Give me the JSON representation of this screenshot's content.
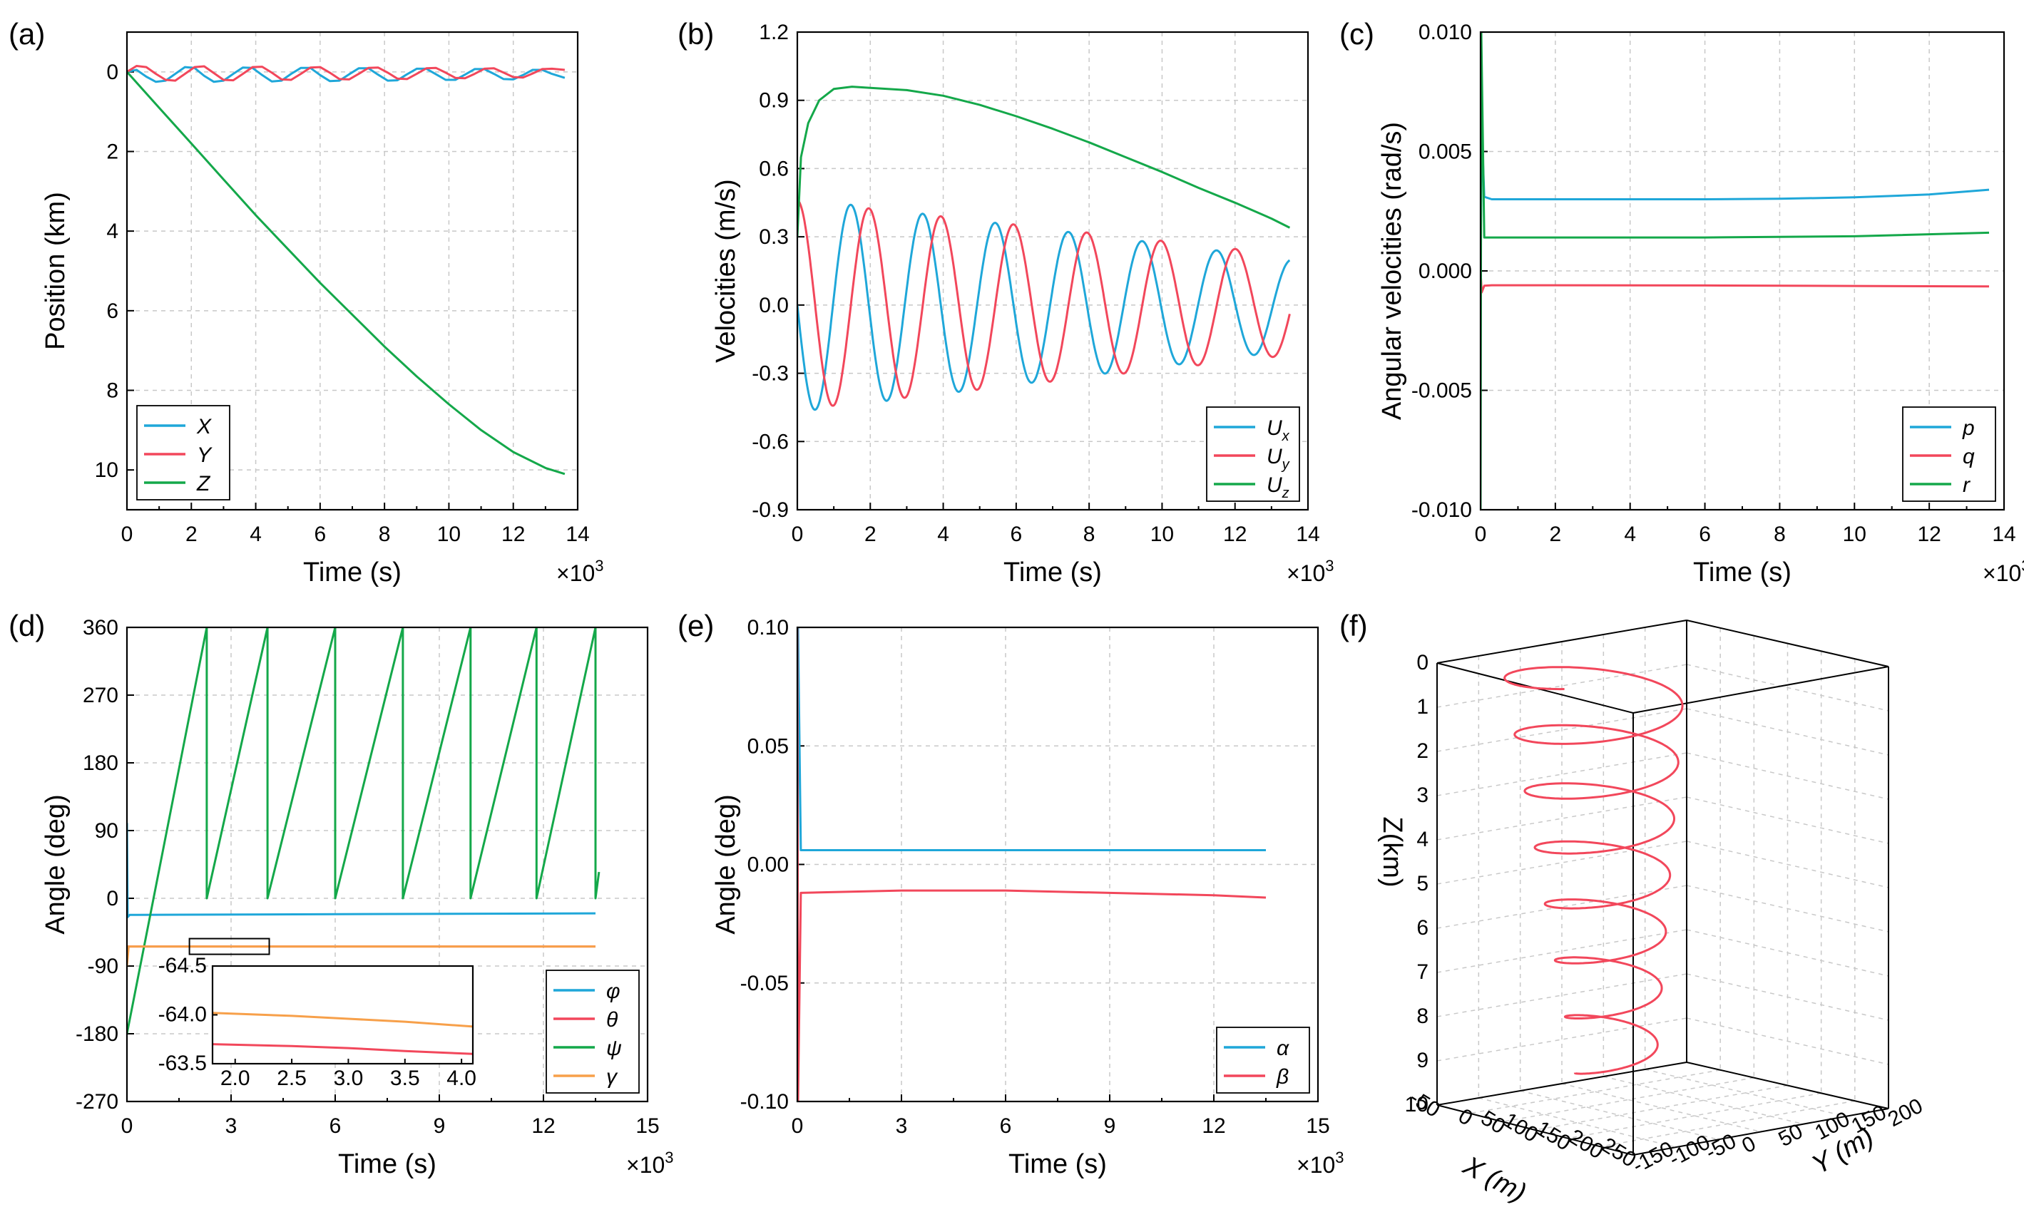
{
  "colors": {
    "cyan": "#1fa7d9",
    "red": "#f2475b",
    "green": "#14a84a",
    "orange": "#f7a04a"
  },
  "chart_data": [
    {
      "id": "a",
      "panel_label": "(a)",
      "type": "line",
      "xlabel": "Time (s)",
      "ylabel": "Position (km)",
      "x_multiplier": "×10",
      "xlim": [
        0,
        14
      ],
      "ylim": [
        11,
        -1
      ],
      "y_inverted": true,
      "xticks": [
        "0",
        "2",
        "4",
        "6",
        "8",
        "10",
        "12",
        "14"
      ],
      "yticks": [
        "0",
        "2",
        "4",
        "6",
        "8",
        "10"
      ],
      "legend": "bottom-left",
      "series": [
        {
          "name": "X",
          "color": "#1fa7d9",
          "x": [
            0,
            0.3,
            0.6,
            0.9,
            1.2,
            1.5,
            1.8,
            2.1,
            2.4,
            2.7,
            3.0,
            3.3,
            3.6,
            3.9,
            4.2,
            4.5,
            4.8,
            5.1,
            5.4,
            5.7,
            6.0,
            6.3,
            6.6,
            6.9,
            7.2,
            7.5,
            7.8,
            8.1,
            8.4,
            8.7,
            9.0,
            9.3,
            9.6,
            9.9,
            10.2,
            10.5,
            10.8,
            11.1,
            11.4,
            11.7,
            12.0,
            12.3,
            12.6,
            12.9,
            13.2,
            13.6
          ],
          "y": [
            0,
            -0.05,
            0.12,
            0.25,
            0.22,
            0.05,
            -0.12,
            -0.1,
            0.1,
            0.25,
            0.22,
            0.05,
            -0.11,
            -0.1,
            0.08,
            0.24,
            0.22,
            0.05,
            -0.1,
            -0.1,
            0.08,
            0.23,
            0.22,
            0.06,
            -0.09,
            -0.09,
            0.07,
            0.22,
            0.21,
            0.06,
            -0.08,
            -0.08,
            0.06,
            0.2,
            0.2,
            0.07,
            -0.07,
            -0.07,
            0.05,
            0.18,
            0.19,
            0.08,
            -0.05,
            -0.05,
            0.05,
            0.15
          ]
        },
        {
          "name": "Y",
          "color": "#f2475b",
          "x": [
            0,
            0.3,
            0.6,
            0.9,
            1.2,
            1.5,
            1.8,
            2.1,
            2.4,
            2.7,
            3.0,
            3.3,
            3.6,
            3.9,
            4.2,
            4.5,
            4.8,
            5.1,
            5.4,
            5.7,
            6.0,
            6.3,
            6.6,
            6.9,
            7.2,
            7.5,
            7.8,
            8.1,
            8.4,
            8.7,
            9.0,
            9.3,
            9.6,
            9.9,
            10.2,
            10.5,
            10.8,
            11.1,
            11.4,
            11.7,
            12.0,
            12.3,
            12.6,
            12.9,
            13.2,
            13.6
          ],
          "y": [
            0,
            -0.15,
            -0.12,
            0.05,
            0.2,
            0.22,
            0.05,
            -0.12,
            -0.14,
            0.03,
            0.2,
            0.21,
            0.05,
            -0.12,
            -0.13,
            0.02,
            0.19,
            0.2,
            0.05,
            -0.11,
            -0.12,
            0.02,
            0.18,
            0.19,
            0.05,
            -0.1,
            -0.11,
            0.02,
            0.17,
            0.18,
            0.05,
            -0.09,
            -0.1,
            0.02,
            0.15,
            0.16,
            0.05,
            -0.08,
            -0.09,
            0.02,
            0.13,
            0.14,
            0.04,
            -0.07,
            -0.08,
            -0.05
          ]
        },
        {
          "name": "Z",
          "color": "#14a84a",
          "x": [
            0,
            1,
            2,
            3,
            4,
            5,
            6,
            7,
            8,
            9,
            10,
            11,
            12,
            13,
            13.6
          ],
          "y": [
            0,
            0.9,
            1.8,
            2.7,
            3.6,
            4.45,
            5.3,
            6.1,
            6.9,
            7.65,
            8.35,
            9.0,
            9.55,
            9.95,
            10.1
          ]
        }
      ]
    },
    {
      "id": "b",
      "panel_label": "(b)",
      "type": "line",
      "xlabel": "Time (s)",
      "ylabel": "Velocities (m/s)",
      "x_multiplier": "×10",
      "xlim": [
        0,
        14
      ],
      "ylim": [
        -0.9,
        1.2
      ],
      "xticks": [
        "0",
        "2",
        "4",
        "6",
        "8",
        "10",
        "12",
        "14"
      ],
      "yticks": [
        "-0.9",
        "-0.6",
        "-0.3",
        "0.0",
        "0.3",
        "0.6",
        "0.9",
        "1.2"
      ],
      "legend": "bottom-right",
      "series": [
        {
          "name": "U",
          "subscript": "x",
          "color": "#1fa7d9",
          "model": "sine",
          "amp_start": 0.47,
          "amp_end": 0.2,
          "period": 1.95,
          "phase": 0,
          "x_end": 13.5
        },
        {
          "name": "U",
          "subscript": "y",
          "color": "#f2475b",
          "model": "sine",
          "amp_start": 0.46,
          "amp_end": 0.22,
          "period": 1.95,
          "phase": -1.5708,
          "x_end": 13.5
        },
        {
          "name": "U",
          "subscript": "z",
          "color": "#14a84a",
          "x": [
            0,
            0.1,
            0.3,
            0.6,
            1.0,
            1.5,
            2.0,
            3.0,
            4.0,
            5.0,
            6.0,
            7.0,
            8.0,
            9.0,
            10.0,
            11.0,
            12.0,
            13.0,
            13.5
          ],
          "y": [
            0.3,
            0.65,
            0.8,
            0.9,
            0.95,
            0.96,
            0.955,
            0.945,
            0.92,
            0.88,
            0.83,
            0.775,
            0.715,
            0.65,
            0.585,
            0.515,
            0.45,
            0.38,
            0.34
          ]
        }
      ]
    },
    {
      "id": "c",
      "panel_label": "(c)",
      "type": "line",
      "xlabel": "Time (s)",
      "ylabel": "Angular velocities (rad/s)",
      "x_multiplier": "×10",
      "xlim": [
        0,
        14
      ],
      "ylim": [
        -0.01,
        0.01
      ],
      "xticks": [
        "0",
        "2",
        "4",
        "6",
        "8",
        "10",
        "12",
        "14"
      ],
      "yticks": [
        "-0.010",
        "-0.005",
        "0.000",
        "0.005",
        "0.010"
      ],
      "legend": "bottom-right",
      "series": [
        {
          "name": "p",
          "color": "#1fa7d9",
          "x": [
            0,
            0.03,
            0.1,
            0.3,
            1,
            2,
            4,
            6,
            8,
            10,
            12,
            13.6
          ],
          "y": [
            0.0,
            0.006,
            0.0031,
            0.003,
            0.003,
            0.003,
            0.003,
            0.003,
            0.00302,
            0.00308,
            0.0032,
            0.0034
          ]
        },
        {
          "name": "q",
          "color": "#f2475b",
          "x": [
            0,
            0.03,
            0.1,
            0.3,
            2,
            6,
            10,
            13.6
          ],
          "y": [
            0.0,
            -0.0009,
            -0.00062,
            -0.0006,
            -0.0006,
            -0.00061,
            -0.00063,
            -0.00065
          ]
        },
        {
          "name": "r",
          "color": "#14a84a",
          "x": [
            0,
            0.02,
            0.1,
            0.3,
            2,
            6,
            10,
            13.6
          ],
          "y": [
            -0.01,
            0.01,
            0.0014,
            0.0014,
            0.0014,
            0.0014,
            0.00145,
            0.0016
          ]
        }
      ]
    },
    {
      "id": "d",
      "panel_label": "(d)",
      "type": "line",
      "xlabel": "Time (s)",
      "ylabel": "Angle (deg)",
      "x_multiplier": "×10",
      "xlim": [
        0,
        15
      ],
      "ylim": [
        -270,
        360
      ],
      "xticks": [
        "0",
        "3",
        "6",
        "9",
        "12",
        "15"
      ],
      "yticks": [
        "-270",
        "-180",
        "-90",
        "0",
        "90",
        "180",
        "270",
        "360"
      ],
      "legend": "bottom-right",
      "series": [
        {
          "name": "φ",
          "color": "#1fa7d9",
          "x": [
            0,
            0.02,
            0.08,
            0.3,
            13.5
          ],
          "y": [
            100,
            -25,
            -22,
            -22,
            -20
          ]
        },
        {
          "name": "θ",
          "color": "#f2475b",
          "x": [
            0,
            13.5
          ],
          "y": [
            -64,
            -64
          ]
        },
        {
          "name": "ψ",
          "color": "#14a84a",
          "x": [
            0,
            2.3,
            2.3,
            4.05,
            4.05,
            6.0,
            6.0,
            7.95,
            7.95,
            9.9,
            9.9,
            11.8,
            11.8,
            13.5,
            13.5,
            13.6
          ],
          "y": [
            -180,
            360,
            0,
            360,
            0,
            360,
            0,
            360,
            0,
            360,
            0,
            360,
            0,
            360,
            0,
            35
          ]
        },
        {
          "name": "γ",
          "color": "#f7a04a",
          "x": [
            0,
            0.05,
            0.3,
            13.5
          ],
          "y": [
            -90,
            -64,
            -64,
            -64
          ]
        }
      ],
      "inset": {
        "xlim": [
          1.8,
          4.1
        ],
        "ylim": [
          -63.5,
          -64.5
        ],
        "xticks": [
          "2.0",
          "2.5",
          "3.0",
          "3.5",
          "4.0"
        ],
        "yticks": [
          "-64.5",
          "-64.0",
          "-63.5"
        ],
        "series": [
          {
            "name": "γ",
            "color": "#f7a04a",
            "x": [
              1.8,
              2.5,
              3.0,
              3.5,
              4.1
            ],
            "y": [
              -64.02,
              -63.99,
              -63.96,
              -63.93,
              -63.88
            ]
          },
          {
            "name": "θ",
            "color": "#f2475b",
            "x": [
              1.8,
              2.5,
              3.0,
              3.5,
              4.1
            ],
            "y": [
              -63.7,
              -63.68,
              -63.66,
              -63.63,
              -63.6
            ]
          }
        ]
      }
    },
    {
      "id": "e",
      "panel_label": "(e)",
      "type": "line",
      "xlabel": "Time (s)",
      "ylabel": "Angle (deg)",
      "x_multiplier": "×10",
      "xlim": [
        0,
        15
      ],
      "ylim": [
        -0.1,
        0.1
      ],
      "xticks": [
        "0",
        "3",
        "6",
        "9",
        "12",
        "15"
      ],
      "yticks": [
        "-0.10",
        "-0.05",
        "0.00",
        "0.05",
        "0.10"
      ],
      "legend": "bottom-right",
      "series": [
        {
          "name": "α",
          "color": "#1fa7d9",
          "x": [
            0,
            0.02,
            0.1,
            3,
            6,
            9,
            12,
            13.5
          ],
          "y": [
            -0.1,
            0.1,
            0.006,
            0.006,
            0.006,
            0.006,
            0.006,
            0.006
          ]
        },
        {
          "name": "β",
          "color": "#f2475b",
          "x": [
            0,
            0.02,
            0.1,
            3,
            6,
            9,
            12,
            13.5
          ],
          "y": [
            0.1,
            -0.1,
            -0.012,
            -0.011,
            -0.011,
            -0.012,
            -0.013,
            -0.014
          ]
        }
      ]
    },
    {
      "id": "f",
      "panel_label": "(f)",
      "type": "line3d",
      "xlabel": "X (m)",
      "ylabel": "Y (m)",
      "zlabel": "Z(km)",
      "xticks": [
        "-50",
        "0",
        "50",
        "100",
        "150",
        "200",
        "250"
      ],
      "yticks": [
        "-150",
        "-100",
        "-50",
        "0",
        "50",
        "100",
        "150",
        "200"
      ],
      "zticks": [
        "0",
        "1",
        "2",
        "3",
        "4",
        "5",
        "6",
        "7",
        "8",
        "9",
        "10"
      ],
      "helix": {
        "turns": 7.2,
        "z_range": [
          0,
          10
        ],
        "radius_start": 125,
        "radius_end": 55,
        "center_x": 70,
        "center_y": 25,
        "color": "#f2475b"
      }
    }
  ]
}
